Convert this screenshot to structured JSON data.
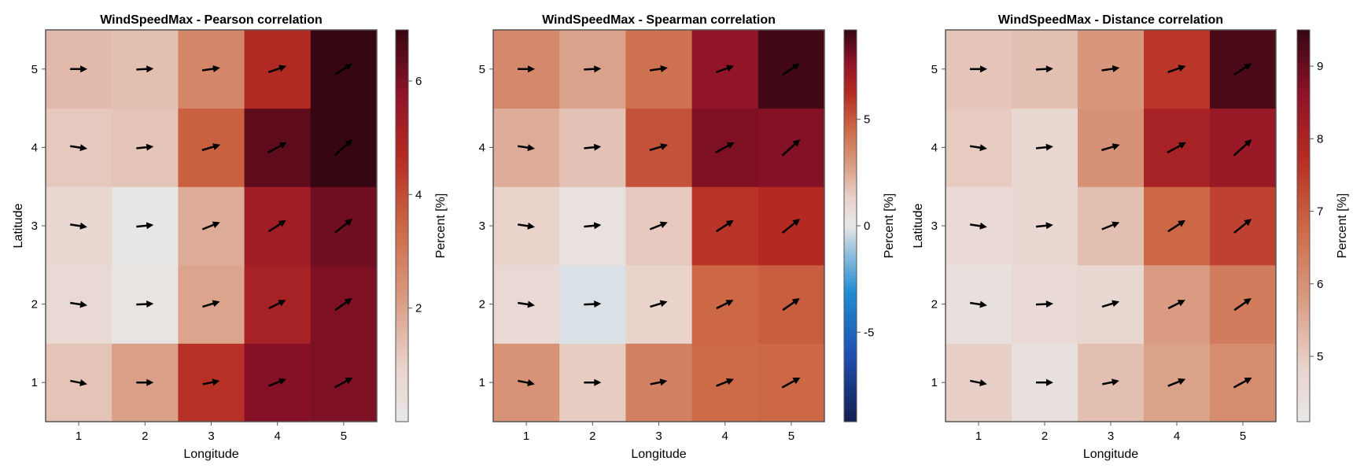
{
  "chart_data": [
    {
      "type": "heatmap",
      "title": "WindSpeedMax - Pearson correlation",
      "xlabel": "Longitude",
      "ylabel": "Latitude",
      "x": [
        1,
        2,
        3,
        4,
        5
      ],
      "y": [
        1,
        2,
        3,
        4,
        5
      ],
      "x_ticks": [
        "1",
        "2",
        "3",
        "4",
        "5"
      ],
      "y_ticks": [
        "1",
        "2",
        "3",
        "4",
        "5"
      ],
      "values": [
        [
          1.3,
          2.1,
          4.6,
          5.9,
          6.0
        ],
        [
          0.7,
          0.2,
          2.0,
          5.1,
          6.0
        ],
        [
          0.8,
          0.1,
          1.8,
          5.3,
          6.2
        ],
        [
          1.2,
          1.3,
          3.6,
          6.4,
          7.2
        ],
        [
          1.5,
          1.4,
          2.7,
          4.8,
          7.0
        ]
      ],
      "colorbar": {
        "label": "Percent [%]",
        "range": [
          0,
          6.9
        ],
        "ticks": [
          2,
          4,
          6
        ],
        "tick_labels": [
          "2",
          "4",
          "6"
        ],
        "colormap": "diverging blue-white-red, upper half"
      },
      "arrows": {
        "description": "wind direction arrows per grid cell",
        "u": [
          [
            1,
            1,
            1,
            1,
            1
          ],
          [
            1,
            1,
            1,
            1,
            1
          ],
          [
            1,
            1,
            1,
            1,
            1
          ],
          [
            1,
            1,
            1,
            1,
            1
          ],
          [
            1,
            1,
            1,
            1,
            1
          ]
        ],
        "v": [
          [
            -0.2,
            0.0,
            0.2,
            0.4,
            0.55
          ],
          [
            -0.15,
            0.05,
            0.3,
            0.5,
            0.7
          ],
          [
            -0.15,
            0.1,
            0.4,
            0.65,
            0.8
          ],
          [
            -0.15,
            0.1,
            0.3,
            0.55,
            0.9
          ],
          [
            0.0,
            0.05,
            0.15,
            0.35,
            0.65
          ]
        ],
        "length": [
          [
            1.0,
            1.0,
            1.0,
            1.1,
            1.2
          ],
          [
            1.0,
            1.0,
            1.05,
            1.1,
            1.2
          ],
          [
            1.0,
            1.0,
            1.1,
            1.2,
            1.3
          ],
          [
            1.0,
            1.0,
            1.1,
            1.25,
            1.4
          ],
          [
            1.0,
            1.0,
            1.05,
            1.1,
            1.2
          ]
        ]
      },
      "grid": false
    },
    {
      "type": "heatmap",
      "title": "WindSpeedMax - Spearman correlation",
      "xlabel": "Longitude",
      "ylabel": "",
      "x": [
        1,
        2,
        3,
        4,
        5
      ],
      "y": [
        1,
        2,
        3,
        4,
        5
      ],
      "x_ticks": [
        "1",
        "2",
        "3",
        "4",
        "5"
      ],
      "y_ticks": [
        "1",
        "2",
        "3",
        "4",
        "5"
      ],
      "values": [
        [
          3.2,
          1.5,
          3.8,
          4.5,
          4.6
        ],
        [
          0.9,
          -0.2,
          1.3,
          4.6,
          4.9
        ],
        [
          1.3,
          0.4,
          1.6,
          6.0,
          6.3
        ],
        [
          2.4,
          1.8,
          5.2,
          8.0,
          7.9
        ],
        [
          3.5,
          2.7,
          4.3,
          7.6,
          9.0
        ]
      ],
      "colorbar": {
        "label": "Percent [%]",
        "range": [
          -9.2,
          9.2
        ],
        "ticks": [
          -5,
          0,
          5
        ],
        "tick_labels": [
          "-5",
          "0",
          "5"
        ],
        "colormap": "diverging blue-white-red"
      },
      "arrows": {
        "description": "wind direction arrows per grid cell",
        "u": [
          [
            1,
            1,
            1,
            1,
            1
          ],
          [
            1,
            1,
            1,
            1,
            1
          ],
          [
            1,
            1,
            1,
            1,
            1
          ],
          [
            1,
            1,
            1,
            1,
            1
          ],
          [
            1,
            1,
            1,
            1,
            1
          ]
        ],
        "v": [
          [
            -0.2,
            0.0,
            0.2,
            0.4,
            0.55
          ],
          [
            -0.15,
            0.05,
            0.3,
            0.5,
            0.7
          ],
          [
            -0.15,
            0.1,
            0.4,
            0.65,
            0.8
          ],
          [
            -0.15,
            0.1,
            0.3,
            0.55,
            0.9
          ],
          [
            0.0,
            0.05,
            0.15,
            0.35,
            0.65
          ]
        ],
        "length": [
          [
            1.0,
            1.0,
            1.0,
            1.1,
            1.2
          ],
          [
            1.0,
            1.0,
            1.05,
            1.1,
            1.2
          ],
          [
            1.0,
            1.0,
            1.1,
            1.2,
            1.3
          ],
          [
            1.0,
            1.0,
            1.1,
            1.25,
            1.4
          ],
          [
            1.0,
            1.0,
            1.05,
            1.1,
            1.2
          ]
        ]
      },
      "grid": false
    },
    {
      "type": "heatmap",
      "title": "WindSpeedMax - Distance correlation",
      "xlabel": "Longitude",
      "ylabel": "Latitude",
      "x": [
        1,
        2,
        3,
        4,
        5
      ],
      "y": [
        1,
        2,
        3,
        4,
        5
      ],
      "x_ticks": [
        "1",
        "2",
        "3",
        "4",
        "5"
      ],
      "y_ticks": [
        "1",
        "2",
        "3",
        "4",
        "5"
      ],
      "values": [
        [
          4.9,
          4.4,
          5.2,
          5.7,
          6.1
        ],
        [
          4.4,
          4.6,
          4.7,
          5.8,
          6.4
        ],
        [
          4.6,
          4.7,
          5.2,
          6.8,
          7.4
        ],
        [
          5.0,
          4.7,
          6.0,
          8.1,
          8.4
        ],
        [
          5.1,
          5.2,
          5.9,
          7.6,
          9.3
        ]
      ],
      "colorbar": {
        "label": "Percent [%]",
        "range": [
          4.1,
          9.5
        ],
        "ticks": [
          5,
          6,
          7,
          8,
          9
        ],
        "tick_labels": [
          "5",
          "6",
          "7",
          "8",
          "9"
        ],
        "colormap": "diverging blue-white-red, upper half"
      },
      "arrows": {
        "description": "wind direction arrows per grid cell",
        "u": [
          [
            1,
            1,
            1,
            1,
            1
          ],
          [
            1,
            1,
            1,
            1,
            1
          ],
          [
            1,
            1,
            1,
            1,
            1
          ],
          [
            1,
            1,
            1,
            1,
            1
          ],
          [
            1,
            1,
            1,
            1,
            1
          ]
        ],
        "v": [
          [
            -0.2,
            0.0,
            0.2,
            0.4,
            0.55
          ],
          [
            -0.15,
            0.05,
            0.3,
            0.5,
            0.7
          ],
          [
            -0.15,
            0.1,
            0.4,
            0.65,
            0.8
          ],
          [
            -0.15,
            0.1,
            0.3,
            0.55,
            0.9
          ],
          [
            0.0,
            0.05,
            0.15,
            0.35,
            0.65
          ]
        ],
        "length": [
          [
            1.0,
            1.0,
            1.0,
            1.1,
            1.2
          ],
          [
            1.0,
            1.0,
            1.05,
            1.1,
            1.2
          ],
          [
            1.0,
            1.0,
            1.1,
            1.2,
            1.3
          ],
          [
            1.0,
            1.0,
            1.1,
            1.25,
            1.4
          ],
          [
            1.0,
            1.0,
            1.05,
            1.1,
            1.2
          ]
        ]
      },
      "grid": false
    }
  ],
  "colors": {
    "axis": "#555555",
    "arrow": "#000000",
    "background": "#ffffff"
  }
}
